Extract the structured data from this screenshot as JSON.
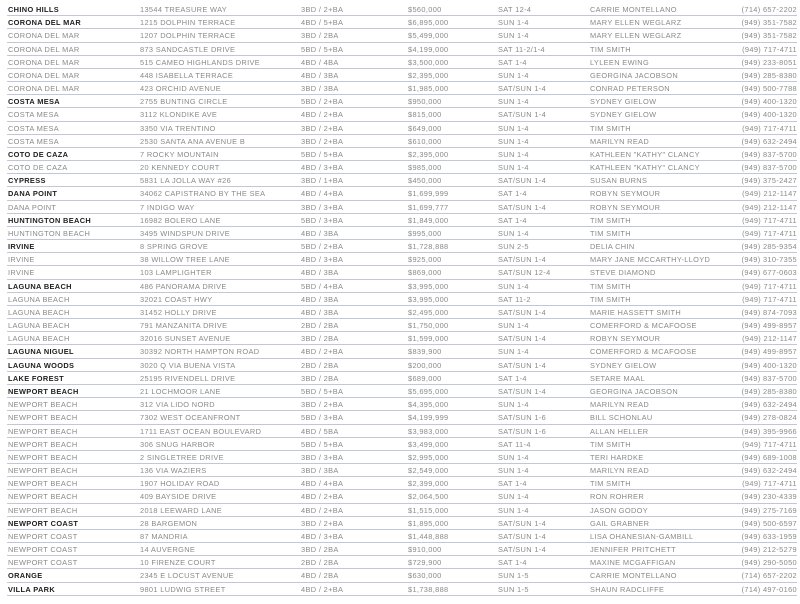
{
  "colors": {
    "lead_city": "#1e1e1e",
    "text": "#8a8a8a",
    "rule": "#c3c6d4"
  },
  "listings": [
    {
      "city": "CHINO HILLS",
      "address": "13544 TREASURE WAY",
      "beds": "3BD / 2+BA",
      "price": "$560,000",
      "time": "SAT 12-4",
      "agent": "CARRIE MONTELLANO",
      "phone": "(714) 657-2202",
      "lead": true
    },
    {
      "city": "CORONA DEL MAR",
      "address": "1215 DOLPHIN TERRACE",
      "beds": "4BD / 5+BA",
      "price": "$6,895,000",
      "time": "SUN 1-4",
      "agent": "MARY ELLEN WEGLARZ",
      "phone": "(949) 351-7582",
      "lead": true
    },
    {
      "city": "CORONA DEL MAR",
      "address": "1207 DOLPHIN TERRACE",
      "beds": "3BD / 2BA",
      "price": "$5,499,000",
      "time": "SUN 1-4",
      "agent": "MARY ELLEN WEGLARZ",
      "phone": "(949) 351-7582",
      "lead": false
    },
    {
      "city": "CORONA DEL MAR",
      "address": "873 SANDCASTLE DRIVE",
      "beds": "5BD / 5+BA",
      "price": "$4,199,000",
      "time": "SAT 11-2/1-4",
      "agent": "TIM SMITH",
      "phone": "(949) 717-4711",
      "lead": false
    },
    {
      "city": "CORONA DEL MAR",
      "address": "515 CAMEO HIGHLANDS DRIVE",
      "beds": "4BD / 4BA",
      "price": "$3,500,000",
      "time": "SAT 1-4",
      "agent": "LYLEEN EWING",
      "phone": "(949) 233-8051",
      "lead": false
    },
    {
      "city": "CORONA DEL MAR",
      "address": "448 ISABELLA TERRACE",
      "beds": "4BD / 3BA",
      "price": "$2,395,000",
      "time": "SUN 1-4",
      "agent": "GEORGINA JACOBSON",
      "phone": "(949) 285-8380",
      "lead": false
    },
    {
      "city": "CORONA DEL MAR",
      "address": "423 ORCHID AVENUE",
      "beds": "3BD / 3BA",
      "price": "$1,985,000",
      "time": "SAT/SUN 1-4",
      "agent": "CONRAD PETERSON",
      "phone": "(949) 500-7788",
      "lead": false
    },
    {
      "city": "COSTA MESA",
      "address": "2755 BUNTING CIRCLE",
      "beds": "5BD / 2+BA",
      "price": "$950,000",
      "time": "SUN 1-4",
      "agent": "SYDNEY GIELOW",
      "phone": "(949) 400-1320",
      "lead": true
    },
    {
      "city": "COSTA MESA",
      "address": "3112 KLONDIKE AVE",
      "beds": "4BD / 2+BA",
      "price": "$815,000",
      "time": "SAT/SUN 1-4",
      "agent": "SYDNEY GIELOW",
      "phone": "(949) 400-1320",
      "lead": false
    },
    {
      "city": "COSTA MESA",
      "address": "3350 VIA TRENTINO",
      "beds": "3BD / 2+BA",
      "price": "$649,000",
      "time": "SUN 1-4",
      "agent": "TIM SMITH",
      "phone": "(949) 717-4711",
      "lead": false
    },
    {
      "city": "COSTA MESA",
      "address": "2530 SANTA ANA AVENUE B",
      "beds": "3BD / 2+BA",
      "price": "$610,000",
      "time": "SUN 1-4",
      "agent": "MARILYN READ",
      "phone": "(949) 632-2494",
      "lead": false
    },
    {
      "city": "COTO DE CAZA",
      "address": "7 ROCKY MOUNTAIN",
      "beds": "5BD / 5+BA",
      "price": "$2,395,000",
      "time": "SUN 1-4",
      "agent": "KATHLEEN \"KATHY\" CLANCY",
      "phone": "(949) 837-5700",
      "lead": true
    },
    {
      "city": "COTO DE CAZA",
      "address": "20 KENNEDY COURT",
      "beds": "4BD / 3+BA",
      "price": "$985,000",
      "time": "SUN 1-4",
      "agent": "KATHLEEN \"KATHY\" CLANCY",
      "phone": "(949) 837-5700",
      "lead": false
    },
    {
      "city": "CYPRESS",
      "address": "5831 LA JOLLA WAY #26",
      "beds": "3BD / 1+BA",
      "price": "$450,000",
      "time": "SAT/SUN 1-4",
      "agent": "SUSAN BURNS",
      "phone": "(949) 375-2427",
      "lead": true
    },
    {
      "city": "DANA POINT",
      "address": "34062 CAPISTRANO BY THE SEA",
      "beds": "4BD / 4+BA",
      "price": "$1,699,999",
      "time": "SAT 1-4",
      "agent": "ROBYN SEYMOUR",
      "phone": "(949) 212-1147",
      "lead": true
    },
    {
      "city": "DANA POINT",
      "address": "7 INDIGO WAY",
      "beds": "3BD / 3+BA",
      "price": "$1,699,777",
      "time": "SAT/SUN 1-4",
      "agent": "ROBYN SEYMOUR",
      "phone": "(949) 212-1147",
      "lead": false
    },
    {
      "city": "HUNTINGTON BEACH",
      "address": "16982 BOLERO LANE",
      "beds": "5BD / 3+BA",
      "price": "$1,849,000",
      "time": "SAT 1-4",
      "agent": "TIM SMITH",
      "phone": "(949) 717-4711",
      "lead": true
    },
    {
      "city": "HUNTINGTON BEACH",
      "address": "3495 WINDSPUN DRIVE",
      "beds": "4BD / 3BA",
      "price": "$995,000",
      "time": "SUN 1-4",
      "agent": "TIM SMITH",
      "phone": "(949) 717-4711",
      "lead": false
    },
    {
      "city": "IRVINE",
      "address": "8 SPRING GROVE",
      "beds": "5BD / 2+BA",
      "price": "$1,728,888",
      "time": "SUN 2-5",
      "agent": "DELIA CHIN",
      "phone": "(949) 285-9354",
      "lead": true
    },
    {
      "city": "IRVINE",
      "address": "38 WILLOW TREE LANE",
      "beds": "4BD / 3+BA",
      "price": "$925,000",
      "time": "SAT/SUN 1-4",
      "agent": "MARY JANE  MCCARTHY-LLOYD",
      "phone": "(949) 310-7355",
      "lead": false
    },
    {
      "city": "IRVINE",
      "address": "103 LAMPLIGHTER",
      "beds": "4BD / 3BA",
      "price": "$869,000",
      "time": "SAT/SUN 12-4",
      "agent": "STEVE DIAMOND",
      "phone": "(949) 677-0603",
      "lead": false
    },
    {
      "city": "LAGUNA BEACH",
      "address": "486 PANORAMA DRIVE",
      "beds": "5BD / 4+BA",
      "price": "$3,995,000",
      "time": "SUN 1-4",
      "agent": "TIM SMITH",
      "phone": "(949) 717-4711",
      "lead": true
    },
    {
      "city": "LAGUNA BEACH",
      "address": "32021 COAST HWY",
      "beds": "4BD / 3BA",
      "price": "$3,995,000",
      "time": "SAT 11-2",
      "agent": "TIM SMITH",
      "phone": "(949) 717-4711",
      "lead": false
    },
    {
      "city": "LAGUNA BEACH",
      "address": "31452 HOLLY DRIVE",
      "beds": "4BD / 3BA",
      "price": "$2,495,000",
      "time": "SAT/SUN 1-4",
      "agent": "MARIE HASSETT SMITH",
      "phone": "(949) 874-7093",
      "lead": false
    },
    {
      "city": "LAGUNA BEACH",
      "address": "791 MANZANITA DRIVE",
      "beds": "2BD / 2BA",
      "price": "$1,750,000",
      "time": "SUN 1-4",
      "agent": "COMERFORD & MCAFOOSE",
      "phone": "(949) 499-8957",
      "lead": false
    },
    {
      "city": "LAGUNA BEACH",
      "address": "32016 SUNSET AVENUE",
      "beds": "3BD / 2BA",
      "price": "$1,599,000",
      "time": "SAT/SUN 1-4",
      "agent": "ROBYN SEYMOUR",
      "phone": "(949) 212-1147",
      "lead": false
    },
    {
      "city": "LAGUNA NIGUEL",
      "address": "30392 NORTH HAMPTON ROAD",
      "beds": "4BD / 2+BA",
      "price": "$839,900",
      "time": "SUN 1-4",
      "agent": "COMERFORD & MCAFOOSE",
      "phone": "(949) 499-8957",
      "lead": true
    },
    {
      "city": "LAGUNA WOODS",
      "address": "3020 Q VIA BUENA VISTA",
      "beds": "2BD / 2BA",
      "price": "$200,000",
      "time": "SAT/SUN 1-4",
      "agent": "SYDNEY GIELOW",
      "phone": "(949) 400-1320",
      "lead": true
    },
    {
      "city": "LAKE FOREST",
      "address": "25195 RIVENDELL DRIVE",
      "beds": "3BD / 2BA",
      "price": "$689,000",
      "time": "SAT 1-4",
      "agent": "SETARE MAAL",
      "phone": "(949) 837-5700",
      "lead": true
    },
    {
      "city": "NEWPORT BEACH",
      "address": "21 LOCHMOOR LANE",
      "beds": "5BD / 5+BA",
      "price": "$5,695,000",
      "time": "SAT/SUN 1-4",
      "agent": "GEORGINA JACOBSON",
      "phone": "(949) 285-8380",
      "lead": true
    },
    {
      "city": "NEWPORT BEACH",
      "address": "312 VIA LIDO NORD",
      "beds": "3BD / 2+BA",
      "price": "$4,395,000",
      "time": "SUN 1-4",
      "agent": "MARILYN READ",
      "phone": "(949) 632-2494",
      "lead": false
    },
    {
      "city": "NEWPORT BEACH",
      "address": "7302 WEST OCEANFRONT",
      "beds": "5BD / 3+BA",
      "price": "$4,199,999",
      "time": "SAT/SUN 1-6",
      "agent": "BILL SCHONLAU",
      "phone": "(949) 278-0824",
      "lead": false
    },
    {
      "city": "NEWPORT BEACH",
      "address": "1711 EAST OCEAN BOULEVARD",
      "beds": "4BD / 5BA",
      "price": "$3,983,000",
      "time": "SAT/SUN 1-6",
      "agent": "ALLAN HELLER",
      "phone": "(949) 395-9966",
      "lead": false
    },
    {
      "city": "NEWPORT BEACH",
      "address": "306 SNUG HARBOR",
      "beds": "5BD / 5+BA",
      "price": "$3,499,000",
      "time": "SAT 11-4",
      "agent": "TIM SMITH",
      "phone": "(949) 717-4711",
      "lead": false
    },
    {
      "city": "NEWPORT BEACH",
      "address": "2 SINGLETREE DRIVE",
      "beds": "3BD / 3+BA",
      "price": "$2,995,000",
      "time": "SUN 1-4",
      "agent": "TERI HARDKE",
      "phone": "(949) 689-1008",
      "lead": false
    },
    {
      "city": "NEWPORT BEACH",
      "address": "136 VIA WAZIERS",
      "beds": "3BD / 3BA",
      "price": "$2,549,000",
      "time": "SUN 1-4",
      "agent": "MARILYN READ",
      "phone": "(949) 632-2494",
      "lead": false
    },
    {
      "city": "NEWPORT BEACH",
      "address": "1907 HOLIDAY ROAD",
      "beds": "4BD / 4+BA",
      "price": "$2,399,000",
      "time": "SAT 1-4",
      "agent": "TIM SMITH",
      "phone": "(949) 717-4711",
      "lead": false
    },
    {
      "city": "NEWPORT BEACH",
      "address": "409 BAYSIDE DRIVE",
      "beds": "4BD / 2+BA",
      "price": "$2,064,500",
      "time": "SUN 1-4",
      "agent": "RON ROHRER",
      "phone": "(949) 230-4339",
      "lead": false
    },
    {
      "city": "NEWPORT BEACH",
      "address": "2018 LEEWARD LANE",
      "beds": "4BD / 2+BA",
      "price": "$1,515,000",
      "time": "SUN 1-4",
      "agent": "JASON GODOY",
      "phone": "(949) 275-7169",
      "lead": false
    },
    {
      "city": "NEWPORT COAST",
      "address": "28 BARGEMON",
      "beds": "3BD / 2+BA",
      "price": "$1,895,000",
      "time": "SAT/SUN 1-4",
      "agent": "GAIL GRABNER",
      "phone": "(949) 500-6597",
      "lead": true
    },
    {
      "city": "NEWPORT COAST",
      "address": "87 MANDRIA",
      "beds": "4BD / 3+BA",
      "price": "$1,448,888",
      "time": "SAT/SUN 1-4",
      "agent": "LISA OHANESIAN-GAMBILL",
      "phone": "(949) 633-1959",
      "lead": false
    },
    {
      "city": "NEWPORT COAST",
      "address": "14 AUVERGNE",
      "beds": "3BD / 2BA",
      "price": "$910,000",
      "time": "SAT/SUN 1-4",
      "agent": "JENNIFER PRITCHETT",
      "phone": "(949) 212-5279",
      "lead": false
    },
    {
      "city": "NEWPORT COAST",
      "address": "10 FIRENZE COURT",
      "beds": "2BD / 2BA",
      "price": "$729,900",
      "time": "SAT 1-4",
      "agent": "MAXINE MCGAFFIGAN",
      "phone": "(949) 290-5050",
      "lead": false
    },
    {
      "city": "ORANGE",
      "address": "2345 E LOCUST AVENUE",
      "beds": "4BD / 2BA",
      "price": "$630,000",
      "time": "SUN 1-5",
      "agent": "CARRIE MONTELLANO",
      "phone": "(714) 657-2202",
      "lead": true
    },
    {
      "city": "VILLA PARK",
      "address": "9801 LUDWIG STREET",
      "beds": "4BD / 2+BA",
      "price": "$1,738,888",
      "time": "SUN 1-5",
      "agent": "SHAUN RADCLIFFE",
      "phone": "(714) 497-0160",
      "lead": true
    }
  ]
}
